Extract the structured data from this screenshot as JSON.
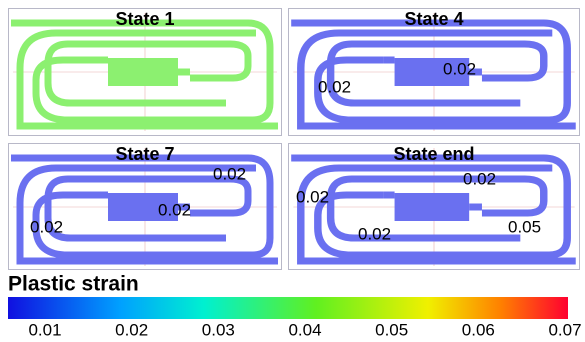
{
  "panels": [
    {
      "title": "State 1",
      "annotations": []
    },
    {
      "title": "State 4",
      "annotations": [
        0.02,
        0.02
      ]
    },
    {
      "title": "State 7",
      "annotations": [
        0.02,
        0.02,
        0.02
      ]
    },
    {
      "title": "State end",
      "annotations": [
        0.02,
        0.02,
        0.02,
        0.05
      ]
    }
  ],
  "colorbar": {
    "label": "Plastic strain",
    "ticks": [
      0.01,
      0.02,
      0.03,
      0.04,
      0.05,
      0.06,
      0.07
    ]
  }
}
